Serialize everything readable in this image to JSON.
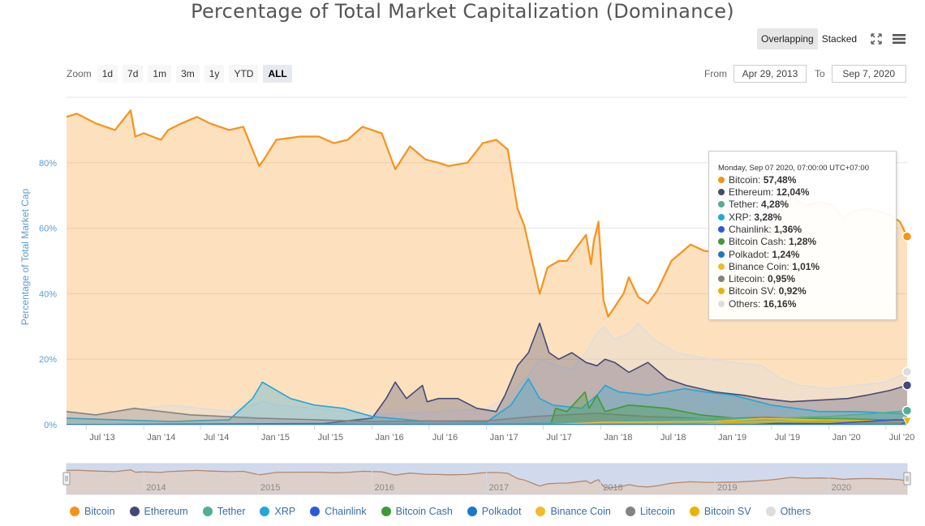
{
  "title": "Percentage of Total Market Capitalization (Dominance)",
  "toolbar": {
    "overlapping_label": "Overlapping",
    "stacked_label": "Stacked"
  },
  "zoom": {
    "label": "Zoom",
    "buttons": [
      "1d",
      "7d",
      "1m",
      "3m",
      "1y",
      "YTD",
      "ALL"
    ],
    "active": "ALL"
  },
  "range": {
    "from_label": "From",
    "from_value": "Apr 29, 2013",
    "to_label": "To",
    "to_value": "Sep 7, 2020"
  },
  "tooltip": {
    "header": "Monday, Sep 07 2020, 07:00:00 UTC+07:00",
    "rows": [
      {
        "name": "Bitcoin",
        "value": "57,48%",
        "color": "#f7931a"
      },
      {
        "name": "Ethereum",
        "value": "12,04%",
        "color": "#454a75"
      },
      {
        "name": "Tether",
        "value": "4,28%",
        "color": "#50af95"
      },
      {
        "name": "XRP",
        "value": "3,28%",
        "color": "#23a7d8"
      },
      {
        "name": "Chainlink",
        "value": "1,36%",
        "color": "#2a5ada"
      },
      {
        "name": "Bitcoin Cash",
        "value": "1,28%",
        "color": "#3f9a36"
      },
      {
        "name": "Polkadot",
        "value": "1,24%",
        "color": "#1978c8"
      },
      {
        "name": "Binance Coin",
        "value": "1,01%",
        "color": "#f3ba2f"
      },
      {
        "name": "Litecoin",
        "value": "0,95%",
        "color": "#838383"
      },
      {
        "name": "Bitcoin SV",
        "value": "0,92%",
        "color": "#eab300"
      },
      {
        "name": "Others",
        "value": "16,16%",
        "color": "#dddddd"
      }
    ]
  },
  "chart_data": {
    "type": "area",
    "title": "Percentage of Total Market Capitalization (Dominance)",
    "ylabel": "Percentage of Total Market Cap",
    "ylim": [
      0,
      100
    ],
    "y_ticks": [
      "0%",
      "20%",
      "40%",
      "60%",
      "80%"
    ],
    "y_tick_values": [
      0,
      20,
      40,
      60,
      80
    ],
    "x_range": [
      "2013-04-29",
      "2020-09-07"
    ],
    "x_ticks": [
      {
        "label": "Jul '13",
        "date": "2013-07-01"
      },
      {
        "label": "Jan '14",
        "date": "2014-01-01"
      },
      {
        "label": "Jul '14",
        "date": "2014-07-01"
      },
      {
        "label": "Jan '15",
        "date": "2015-01-01"
      },
      {
        "label": "Jul '15",
        "date": "2015-07-01"
      },
      {
        "label": "Jan '16",
        "date": "2016-01-01"
      },
      {
        "label": "Jul '16",
        "date": "2016-07-01"
      },
      {
        "label": "Jan '17",
        "date": "2017-01-01"
      },
      {
        "label": "Jul '17",
        "date": "2017-07-01"
      },
      {
        "label": "Jan '18",
        "date": "2018-01-01"
      },
      {
        "label": "Jul '18",
        "date": "2018-07-01"
      },
      {
        "label": "Jan '19",
        "date": "2019-01-01"
      },
      {
        "label": "Jul '19",
        "date": "2019-07-01"
      },
      {
        "label": "Jan '20",
        "date": "2020-01-01"
      },
      {
        "label": "Jul '20",
        "date": "2020-07-01"
      }
    ],
    "navigator_labels": [
      "2014",
      "2015",
      "2016",
      "2017",
      "2018",
      "2019",
      "2020"
    ],
    "series": [
      {
        "name": "Bitcoin",
        "color": "#f7931a",
        "x": [
          "2013-04-29",
          "2013-06-01",
          "2013-08-01",
          "2013-10-01",
          "2013-11-20",
          "2013-12-05",
          "2014-01-01",
          "2014-02-25",
          "2014-03-20",
          "2014-05-01",
          "2014-06-20",
          "2014-08-01",
          "2014-10-01",
          "2014-11-15",
          "2015-01-05",
          "2015-01-20",
          "2015-03-01",
          "2015-05-15",
          "2015-07-15",
          "2015-09-01",
          "2015-10-15",
          "2015-12-01",
          "2016-02-01",
          "2016-03-15",
          "2016-05-01",
          "2016-06-20",
          "2016-08-01",
          "2016-09-01",
          "2016-11-01",
          "2016-12-20",
          "2017-02-01",
          "2017-03-10",
          "2017-04-10",
          "2017-05-01",
          "2017-06-01",
          "2017-06-20",
          "2017-07-15",
          "2017-08-20",
          "2017-09-15",
          "2017-10-15",
          "2017-11-15",
          "2017-12-01",
          "2017-12-10",
          "2017-12-25",
          "2018-01-10",
          "2018-01-25",
          "2018-02-15",
          "2018-03-15",
          "2018-04-01",
          "2018-05-01",
          "2018-06-01",
          "2018-07-01",
          "2018-08-15",
          "2018-10-15",
          "2018-12-01",
          "2019-01-15",
          "2019-03-15",
          "2019-05-01",
          "2019-06-15",
          "2019-07-15",
          "2019-09-01",
          "2019-10-15",
          "2019-12-01",
          "2020-01-15",
          "2020-02-15",
          "2020-03-15",
          "2020-05-01",
          "2020-06-15",
          "2020-07-15",
          "2020-08-15",
          "2020-09-07"
        ],
        "y": [
          94,
          95,
          92,
          90,
          96,
          88,
          89,
          87,
          90,
          92,
          94,
          92,
          90,
          91,
          79,
          81,
          87,
          88,
          88,
          86,
          87,
          91,
          89,
          78,
          85,
          81,
          80,
          79,
          80,
          86,
          87,
          84,
          66,
          61,
          48,
          40,
          48,
          50,
          50,
          54,
          58,
          49,
          56,
          62,
          38,
          33,
          36,
          40,
          45,
          39,
          37,
          41,
          50,
          55,
          53,
          53,
          54,
          57,
          60,
          63,
          70,
          67,
          68,
          67,
          63,
          65,
          66,
          65,
          64,
          62,
          57.48
        ]
      },
      {
        "name": "Ethereum",
        "color": "#454a75",
        "x": [
          "2013-04-29",
          "2015-08-01",
          "2016-01-01",
          "2016-02-15",
          "2016-03-15",
          "2016-04-20",
          "2016-06-10",
          "2016-06-25",
          "2016-08-01",
          "2016-10-01",
          "2016-12-01",
          "2017-02-01",
          "2017-03-01",
          "2017-04-10",
          "2017-05-15",
          "2017-06-20",
          "2017-07-20",
          "2017-08-20",
          "2017-10-01",
          "2017-11-15",
          "2017-12-20",
          "2018-01-15",
          "2018-02-15",
          "2018-04-01",
          "2018-06-01",
          "2018-08-01",
          "2018-10-01",
          "2019-01-01",
          "2019-04-01",
          "2019-06-01",
          "2019-09-01",
          "2019-12-01",
          "2020-03-01",
          "2020-05-01",
          "2020-07-15",
          "2020-09-07"
        ],
        "y": [
          0,
          0.4,
          2,
          8,
          13,
          8,
          12,
          7,
          8,
          8,
          5,
          4,
          9,
          18,
          22,
          31,
          22,
          20,
          22,
          19,
          18,
          20,
          19,
          16,
          19,
          14,
          12,
          10,
          9,
          8,
          7,
          7.5,
          8,
          9,
          10.5,
          12.04
        ]
      },
      {
        "name": "Tether",
        "color": "#50af95",
        "x": [
          "2013-04-29",
          "2017-01-01",
          "2018-01-01",
          "2018-06-01",
          "2019-01-01",
          "2019-06-01",
          "2020-01-01",
          "2020-06-01",
          "2020-09-07"
        ],
        "y": [
          0,
          0.2,
          0.8,
          1.5,
          2,
          1.8,
          2.5,
          3.5,
          4.28
        ]
      },
      {
        "name": "XRP",
        "color": "#23a7d8",
        "x": [
          "2013-04-29",
          "2013-10-01",
          "2014-04-01",
          "2014-10-01",
          "2014-12-15",
          "2015-01-15",
          "2015-04-15",
          "2015-07-01",
          "2015-10-01",
          "2016-01-01",
          "2016-06-01",
          "2017-01-01",
          "2017-03-20",
          "2017-05-15",
          "2017-06-20",
          "2017-08-01",
          "2017-11-01",
          "2017-12-20",
          "2018-01-15",
          "2018-03-01",
          "2018-06-01",
          "2018-09-25",
          "2018-12-01",
          "2019-03-01",
          "2019-07-01",
          "2019-12-01",
          "2020-04-01",
          "2020-09-07"
        ],
        "y": [
          2,
          1.5,
          1,
          1.5,
          8,
          13,
          8,
          6,
          5,
          2.5,
          1.2,
          0.8,
          6,
          14,
          8,
          6,
          5,
          9,
          12,
          10,
          9,
          11,
          10,
          9,
          6,
          4,
          4,
          3.28
        ]
      },
      {
        "name": "Chainlink",
        "color": "#2a5ada",
        "x": [
          "2013-04-29",
          "2019-05-01",
          "2019-07-15",
          "2020-01-01",
          "2020-08-01",
          "2020-09-07"
        ],
        "y": [
          0,
          0,
          0.4,
          0.3,
          1.5,
          1.36
        ]
      },
      {
        "name": "Bitcoin Cash",
        "color": "#3f9a36",
        "x": [
          "2013-04-29",
          "2017-07-25",
          "2017-08-10",
          "2017-09-15",
          "2017-11-12",
          "2017-11-25",
          "2017-12-20",
          "2018-01-15",
          "2018-04-01",
          "2018-08-01",
          "2018-11-15",
          "2019-03-01",
          "2019-09-01",
          "2020-03-01",
          "2020-09-07"
        ],
        "y": [
          0,
          0,
          5,
          4,
          10,
          5,
          9,
          4,
          6,
          5,
          3,
          2,
          2,
          1.8,
          1.28
        ]
      },
      {
        "name": "Polkadot",
        "color": "#1978c8",
        "x": [
          "2013-04-29",
          "2020-08-18",
          "2020-09-07"
        ],
        "y": [
          0,
          0,
          1.24
        ]
      },
      {
        "name": "Binance Coin",
        "color": "#f3ba2f",
        "x": [
          "2013-04-29",
          "2017-07-15",
          "2018-01-01",
          "2019-01-01",
          "2019-06-01",
          "2020-01-01",
          "2020-09-07"
        ],
        "y": [
          0,
          0,
          0.7,
          1,
          1.9,
          1.4,
          1.01
        ]
      },
      {
        "name": "Litecoin",
        "color": "#838383",
        "x": [
          "2013-04-29",
          "2013-08-01",
          "2013-12-01",
          "2014-06-01",
          "2015-01-01",
          "2015-07-01",
          "2016-01-01",
          "2017-01-01",
          "2017-06-01",
          "2017-12-15",
          "2018-06-01",
          "2019-01-01",
          "2019-06-15",
          "2020-01-01",
          "2020-09-07"
        ],
        "y": [
          4,
          3,
          5,
          3,
          2,
          1.5,
          1,
          1.2,
          2.5,
          3.5,
          2.5,
          1.8,
          2.3,
          1.3,
          0.95
        ]
      },
      {
        "name": "Bitcoin SV",
        "color": "#eab300",
        "x": [
          "2013-04-29",
          "2018-11-10",
          "2019-03-01",
          "2019-07-01",
          "2020-01-15",
          "2020-09-07"
        ],
        "y": [
          0,
          0,
          0.8,
          1,
          1.5,
          0.92
        ]
      },
      {
        "name": "Others",
        "color": "#dddddd",
        "x": [
          "2013-04-29",
          "2013-08-01",
          "2014-01-01",
          "2014-04-01",
          "2014-07-01",
          "2014-10-01",
          "2015-01-20",
          "2015-03-01",
          "2015-07-01",
          "2016-01-01",
          "2016-04-01",
          "2016-08-01",
          "2017-01-01",
          "2017-03-01",
          "2017-05-15",
          "2017-06-20",
          "2017-08-15",
          "2017-10-01",
          "2017-11-15",
          "2017-12-20",
          "2018-01-10",
          "2018-02-15",
          "2018-04-01",
          "2018-05-01",
          "2018-06-20",
          "2018-09-01",
          "2018-12-15",
          "2019-03-01",
          "2019-06-01",
          "2019-08-01",
          "2019-10-01",
          "2020-01-01",
          "2020-04-01",
          "2020-07-01",
          "2020-08-15",
          "2020-09-07"
        ],
        "y": [
          4,
          3,
          5,
          6,
          5,
          4,
          7,
          6,
          5,
          3,
          3.5,
          4,
          5,
          8,
          15,
          20,
          18,
          17,
          22,
          28,
          30,
          26,
          28,
          31,
          26,
          22,
          20,
          19,
          18,
          14,
          12,
          11,
          12,
          13,
          15,
          16.16
        ]
      }
    ]
  }
}
